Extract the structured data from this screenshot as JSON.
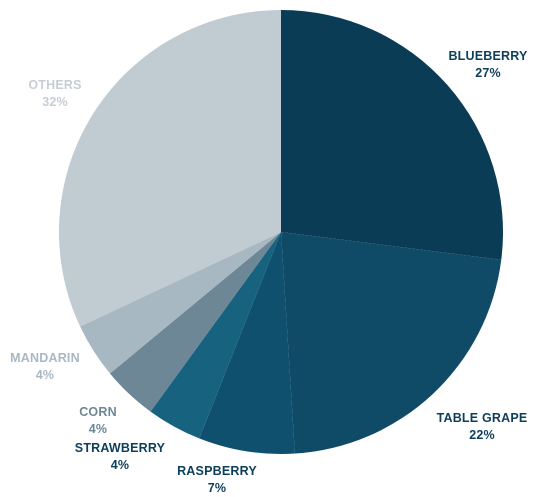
{
  "chart_data": {
    "type": "pie",
    "title": "",
    "start_angle_deg": 0,
    "direction": "clockwise",
    "slices": [
      {
        "name": "BLUEBERRY",
        "value": 27,
        "label": "27%",
        "color": "#0b3c55",
        "label_color": "#0d3f5b"
      },
      {
        "name": "TABLE GRAPE",
        "value": 22,
        "label": "22%",
        "color": "#0f4a66",
        "label_color": "#0d3f5b"
      },
      {
        "name": "RASPBERRY",
        "value": 7,
        "label": "7%",
        "color": "#0f506e",
        "label_color": "#0d3f5b"
      },
      {
        "name": "STRAWBERRY",
        "value": 4,
        "label": "4%",
        "color": "#17627f",
        "label_color": "#0d3f5b"
      },
      {
        "name": "CORN",
        "value": 4,
        "label": "4%",
        "color": "#6d8797",
        "label_color": "#6d8797"
      },
      {
        "name": "MANDARIN",
        "value": 4,
        "label": "4%",
        "color": "#a8b8c3",
        "label_color": "#a8b8c3"
      },
      {
        "name": "OTHERS",
        "value": 32,
        "label": "32%",
        "color": "#c1cbd2",
        "label_color": "#c5ced5"
      }
    ]
  }
}
